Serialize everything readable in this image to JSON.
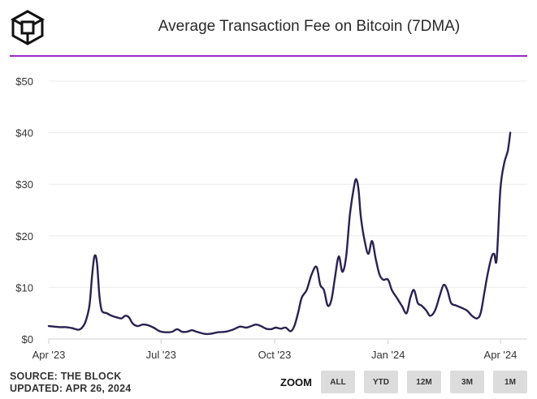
{
  "header": {
    "logo_icon": "the-block-cube-logo",
    "title": "Average Transaction Fee on Bitcoin (7DMA)",
    "accent_color": "#9b27c9"
  },
  "footer": {
    "source": "SOURCE: THE BLOCK",
    "updated": "UPDATED: APR 26, 2024"
  },
  "zoom": {
    "label": "ZOOM",
    "buttons": [
      "ALL",
      "YTD",
      "12M",
      "3M",
      "1M"
    ]
  },
  "chart_data": {
    "type": "line",
    "title": "Average Transaction Fee on Bitcoin (7DMA)",
    "xlabel": "",
    "ylabel": "",
    "ylim": [
      0,
      50
    ],
    "y_ticks": [
      "$0",
      "$10",
      "$20",
      "$30",
      "$40",
      "$50"
    ],
    "x_ticks": [
      "Apr '23",
      "Jul '23",
      "Oct '23",
      "Jan '24",
      "Apr '24"
    ],
    "grid": true,
    "line_color": "#2b2150",
    "series": [
      {
        "values": [
          [
            "2023-04-01",
            2.5
          ],
          [
            "2023-04-05",
            2.4
          ],
          [
            "2023-04-10",
            2.3
          ],
          [
            "2023-04-15",
            2.3
          ],
          [
            "2023-04-20",
            2.1
          ],
          [
            "2023-04-25",
            1.8
          ],
          [
            "2023-04-28",
            2.2
          ],
          [
            "2023-05-01",
            3.5
          ],
          [
            "2023-05-04",
            6.5
          ],
          [
            "2023-05-06",
            12.0
          ],
          [
            "2023-05-08",
            16.0
          ],
          [
            "2023-05-10",
            15.0
          ],
          [
            "2023-05-12",
            8.5
          ],
          [
            "2023-05-14",
            5.5
          ],
          [
            "2023-05-18",
            5.0
          ],
          [
            "2023-05-22",
            4.5
          ],
          [
            "2023-05-26",
            4.2
          ],
          [
            "2023-05-30",
            4.0
          ],
          [
            "2023-06-02",
            4.5
          ],
          [
            "2023-06-05",
            4.2
          ],
          [
            "2023-06-08",
            3.0
          ],
          [
            "2023-06-12",
            2.5
          ],
          [
            "2023-06-16",
            2.8
          ],
          [
            "2023-06-20",
            2.7
          ],
          [
            "2023-06-25",
            2.2
          ],
          [
            "2023-06-30",
            1.5
          ],
          [
            "2023-07-05",
            1.3
          ],
          [
            "2023-07-10",
            1.4
          ],
          [
            "2023-07-14",
            1.9
          ],
          [
            "2023-07-18",
            1.4
          ],
          [
            "2023-07-22",
            1.4
          ],
          [
            "2023-07-26",
            1.7
          ],
          [
            "2023-07-30",
            1.4
          ],
          [
            "2023-08-05",
            1.0
          ],
          [
            "2023-08-10",
            1.0
          ],
          [
            "2023-08-16",
            1.3
          ],
          [
            "2023-08-22",
            1.4
          ],
          [
            "2023-08-28",
            1.8
          ],
          [
            "2023-09-03",
            2.4
          ],
          [
            "2023-09-08",
            2.2
          ],
          [
            "2023-09-12",
            2.5
          ],
          [
            "2023-09-16",
            2.8
          ],
          [
            "2023-09-20",
            2.5
          ],
          [
            "2023-09-24",
            2.0
          ],
          [
            "2023-09-28",
            1.9
          ],
          [
            "2023-10-02",
            2.2
          ],
          [
            "2023-10-06",
            2.0
          ],
          [
            "2023-10-10",
            2.2
          ],
          [
            "2023-10-14",
            1.5
          ],
          [
            "2023-10-17",
            2.5
          ],
          [
            "2023-10-20",
            5.0
          ],
          [
            "2023-10-23",
            8.0
          ],
          [
            "2023-10-27",
            9.5
          ],
          [
            "2023-10-31",
            12.5
          ],
          [
            "2023-11-04",
            14.0
          ],
          [
            "2023-11-07",
            10.5
          ],
          [
            "2023-11-10",
            9.5
          ],
          [
            "2023-11-13",
            6.5
          ],
          [
            "2023-11-16",
            7.5
          ],
          [
            "2023-11-19",
            12.0
          ],
          [
            "2023-11-22",
            16.0
          ],
          [
            "2023-11-25",
            13.0
          ],
          [
            "2023-11-28",
            16.0
          ],
          [
            "2023-12-01",
            24.0
          ],
          [
            "2023-12-04",
            29.0
          ],
          [
            "2023-12-06",
            31.0
          ],
          [
            "2023-12-08",
            29.0
          ],
          [
            "2023-12-10",
            23.5
          ],
          [
            "2023-12-13",
            19.0
          ],
          [
            "2023-12-16",
            16.5
          ],
          [
            "2023-12-19",
            19.0
          ],
          [
            "2023-12-22",
            15.5
          ],
          [
            "2023-12-25",
            12.5
          ],
          [
            "2023-12-28",
            11.5
          ],
          [
            "2024-01-01",
            11.5
          ],
          [
            "2024-01-04",
            9.5
          ],
          [
            "2024-01-08",
            8.0
          ],
          [
            "2024-01-12",
            6.5
          ],
          [
            "2024-01-16",
            5.0
          ],
          [
            "2024-01-19",
            8.0
          ],
          [
            "2024-01-22",
            9.5
          ],
          [
            "2024-01-25",
            7.0
          ],
          [
            "2024-01-28",
            6.5
          ],
          [
            "2024-02-01",
            5.5
          ],
          [
            "2024-02-04",
            4.5
          ],
          [
            "2024-02-08",
            5.5
          ],
          [
            "2024-02-12",
            8.5
          ],
          [
            "2024-02-15",
            10.5
          ],
          [
            "2024-02-18",
            9.5
          ],
          [
            "2024-02-21",
            7.0
          ],
          [
            "2024-02-25",
            6.5
          ],
          [
            "2024-03-01",
            6.0
          ],
          [
            "2024-03-05",
            5.5
          ],
          [
            "2024-03-09",
            4.5
          ],
          [
            "2024-03-13",
            4.0
          ],
          [
            "2024-03-16",
            5.0
          ],
          [
            "2024-03-19",
            9.0
          ],
          [
            "2024-03-22",
            13.0
          ],
          [
            "2024-03-25",
            16.0
          ],
          [
            "2024-03-27",
            16.5
          ],
          [
            "2024-03-29",
            15.5
          ],
          [
            "2024-04-01",
            29.0
          ],
          [
            "2024-04-04",
            34.0
          ],
          [
            "2024-04-07",
            36.5
          ],
          [
            "2024-04-09",
            40.0
          ]
        ]
      }
    ]
  }
}
